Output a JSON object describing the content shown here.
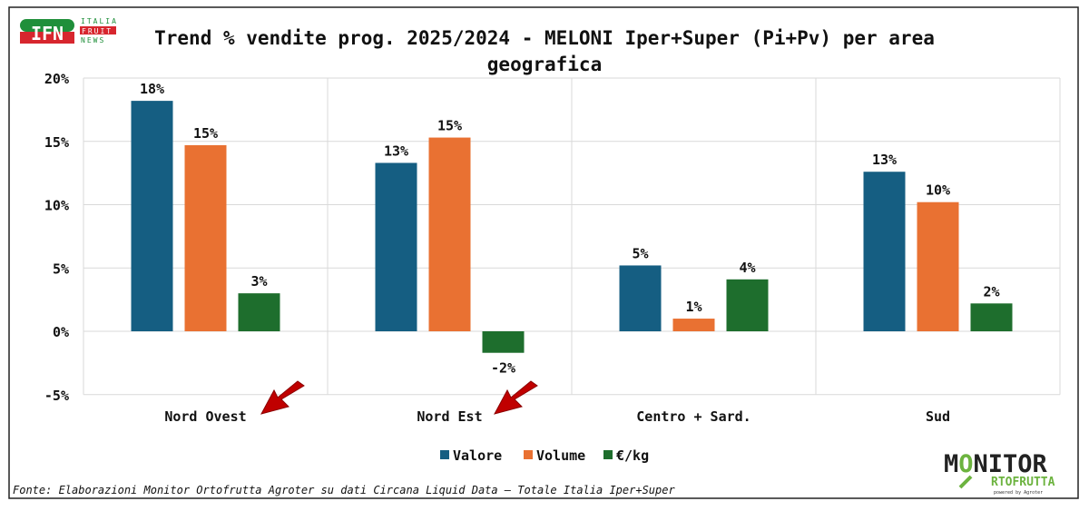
{
  "logo_left": {
    "brand": "IFN",
    "line1": "ITALIA",
    "line2": "FRUIT",
    "line3": "NEWS"
  },
  "logo_right": {
    "line1": "MONITOR",
    "line2": "ORTOFRUTTA",
    "line3": "powered by Agroter"
  },
  "source": "Fonte: Elaborazioni Monitor Ortofrutta Agroter su dati Circana Liquid Data – Totale Italia Iper+Super",
  "chart_data": {
    "type": "bar",
    "title": "Trend % vendite prog. 2025/2024 - MELONI Iper+Super (Pi+Pv) per area geografica",
    "title_lines": [
      "Trend % vendite prog. 2025/2024 - MELONI Iper+Super (Pi+Pv) per area",
      "geografica"
    ],
    "categories": [
      "Nord Ovest",
      "Nord Est",
      "Centro + Sard.",
      "Sud"
    ],
    "series": [
      {
        "name": "Valore",
        "color": "#155E82",
        "values": [
          18.2,
          13.3,
          5.2,
          12.6
        ],
        "labels": [
          "18%",
          "13%",
          "5%",
          "13%"
        ]
      },
      {
        "name": "Volume",
        "color": "#E97132",
        "values": [
          14.7,
          15.3,
          1.0,
          10.2
        ],
        "labels": [
          "15%",
          "15%",
          "1%",
          "10%"
        ]
      },
      {
        "name": "€/kg",
        "color": "#1E6E2D",
        "values": [
          3.0,
          -1.7,
          4.1,
          2.2
        ],
        "labels": [
          "3%",
          "-2%",
          "4%",
          "2%"
        ]
      }
    ],
    "ylim": [
      -5,
      20
    ],
    "yticks": [
      -5,
      0,
      5,
      10,
      15,
      20
    ],
    "ytick_labels": [
      "-5%",
      "0%",
      "5%",
      "10%",
      "15%",
      "20%"
    ],
    "grid": true,
    "legend": "bottom",
    "annotations": [
      "red arrow pointing to Nord Ovest",
      "red arrow pointing to Nord Est"
    ]
  }
}
